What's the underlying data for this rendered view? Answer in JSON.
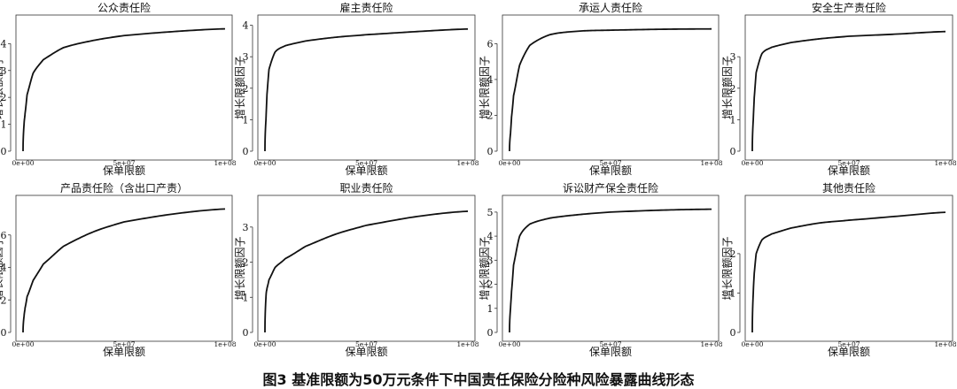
{
  "caption": "图3 基准限额为50万元条件下中国责任保险分险种风险暴露曲线形态",
  "chart_data": [
    {
      "type": "line",
      "title": "公众责任险",
      "xlabel": "保单限额",
      "ylabel": "增长限额因子",
      "x": [
        0,
        500000,
        1000000,
        2000000,
        5000000,
        10000000,
        20000000,
        35000000,
        50000000,
        75000000,
        100000000
      ],
      "series": [
        {
          "values": [
            0,
            1.0,
            1.4,
            2.1,
            2.9,
            3.4,
            3.85,
            4.12,
            4.3,
            4.45,
            4.55
          ]
        }
      ],
      "ylim": [
        0,
        4.8
      ],
      "yticks": [
        0,
        1,
        2,
        3,
        4
      ],
      "xlim": [
        0,
        100000000
      ],
      "xticks": [
        "0e+00",
        "5e+07",
        "1e+08"
      ],
      "grid": false
    },
    {
      "type": "line",
      "title": "雇主责任险",
      "xlabel": "保单限额",
      "ylabel": "增长限额因子",
      "x": [
        0,
        500000,
        1000000,
        2000000,
        5000000,
        10000000,
        20000000,
        35000000,
        50000000,
        75000000,
        100000000
      ],
      "series": [
        {
          "values": [
            0,
            1.0,
            1.8,
            2.6,
            3.15,
            3.35,
            3.5,
            3.62,
            3.7,
            3.8,
            3.88
          ]
        }
      ],
      "ylim": [
        0,
        4.1
      ],
      "yticks": [
        0,
        1,
        2,
        3,
        4
      ],
      "xlim": [
        0,
        100000000
      ],
      "xticks": [
        "0e+00",
        "5e+07",
        "1e+08"
      ],
      "grid": false
    },
    {
      "type": "line",
      "title": "承运人责任险",
      "xlabel": "保单限额",
      "ylabel": "增长限额因子",
      "x": [
        0,
        500000,
        1000000,
        2000000,
        5000000,
        10000000,
        20000000,
        35000000,
        50000000,
        75000000,
        100000000
      ],
      "series": [
        {
          "values": [
            0,
            1.0,
            1.9,
            3.1,
            4.8,
            5.9,
            6.5,
            6.7,
            6.75,
            6.8,
            6.82
          ]
        }
      ],
      "ylim": [
        0,
        7.2
      ],
      "yticks": [
        0,
        2,
        4,
        6
      ],
      "xlim": [
        0,
        100000000
      ],
      "xticks": [
        "0e+00",
        "5e+07",
        "1e+08"
      ],
      "grid": false
    },
    {
      "type": "line",
      "title": "安全生产责任险",
      "xlabel": "保单限额",
      "ylabel": "增长限额因子",
      "x": [
        0,
        500000,
        1000000,
        2000000,
        5000000,
        10000000,
        20000000,
        35000000,
        50000000,
        75000000,
        100000000
      ],
      "series": [
        {
          "values": [
            0,
            1.0,
            1.7,
            2.5,
            3.1,
            3.3,
            3.45,
            3.57,
            3.65,
            3.72,
            3.8
          ]
        }
      ],
      "ylim": [
        0,
        4.1
      ],
      "yticks": [
        0,
        1,
        2,
        3
      ],
      "xlim": [
        0,
        100000000
      ],
      "xticks": [
        "0e+00",
        "5e+07",
        "1e+08"
      ],
      "grid": false
    },
    {
      "type": "line",
      "title": "产品责任险（含出口产责）",
      "xlabel": "保单限额",
      "ylabel": "增长限额因子",
      "x": [
        0,
        500000,
        1000000,
        2000000,
        5000000,
        10000000,
        20000000,
        35000000,
        50000000,
        75000000,
        100000000
      ],
      "series": [
        {
          "values": [
            0,
            1.0,
            1.5,
            2.2,
            3.2,
            4.2,
            5.3,
            6.2,
            6.8,
            7.3,
            7.6
          ]
        }
      ],
      "ylim": [
        0,
        8.0
      ],
      "yticks": [
        0,
        2,
        4,
        6
      ],
      "xlim": [
        0,
        100000000
      ],
      "xticks": [
        "0e+00",
        "5e+07",
        "1e+08"
      ],
      "grid": false
    },
    {
      "type": "line",
      "title": "职业责任险",
      "xlabel": "保单限额",
      "ylabel": "增长限额因子",
      "x": [
        0,
        500000,
        1000000,
        2000000,
        5000000,
        10000000,
        20000000,
        35000000,
        50000000,
        75000000,
        100000000
      ],
      "series": [
        {
          "values": [
            0,
            1.0,
            1.25,
            1.5,
            1.85,
            2.1,
            2.45,
            2.8,
            3.05,
            3.3,
            3.45
          ]
        }
      ],
      "ylim": [
        0,
        3.7
      ],
      "yticks": [
        0,
        1,
        2,
        3
      ],
      "xlim": [
        0,
        100000000
      ],
      "xticks": [
        "0e+00",
        "5e+07",
        "1e+08"
      ],
      "grid": false
    },
    {
      "type": "line",
      "title": "诉讼财产保全责任险",
      "xlabel": "保单限额",
      "ylabel": "增长限额因子",
      "x": [
        0,
        500000,
        1000000,
        2000000,
        5000000,
        10000000,
        20000000,
        35000000,
        50000000,
        75000000,
        100000000
      ],
      "series": [
        {
          "values": [
            0,
            1.0,
            1.7,
            2.8,
            4.0,
            4.5,
            4.75,
            4.9,
            5.0,
            5.08,
            5.12
          ]
        }
      ],
      "ylim": [
        0,
        5.4
      ],
      "yticks": [
        0,
        1,
        2,
        3,
        4,
        5
      ],
      "xlim": [
        0,
        100000000
      ],
      "xticks": [
        "0e+00",
        "5e+07",
        "1e+08"
      ],
      "grid": false
    },
    {
      "type": "line",
      "title": "其他责任险",
      "xlabel": "保单限额",
      "ylabel": "增长限额因子",
      "x": [
        0,
        500000,
        1000000,
        2000000,
        5000000,
        10000000,
        20000000,
        35000000,
        50000000,
        75000000,
        100000000
      ],
      "series": [
        {
          "values": [
            0,
            1.0,
            1.5,
            2.0,
            2.35,
            2.5,
            2.65,
            2.78,
            2.85,
            2.95,
            3.05
          ]
        }
      ],
      "ylim": [
        0,
        3.3
      ],
      "yticks": [
        0,
        1,
        2
      ],
      "xlim": [
        0,
        100000000
      ],
      "xticks": [
        "0e+00",
        "5e+07",
        "1e+08"
      ],
      "grid": false
    }
  ]
}
